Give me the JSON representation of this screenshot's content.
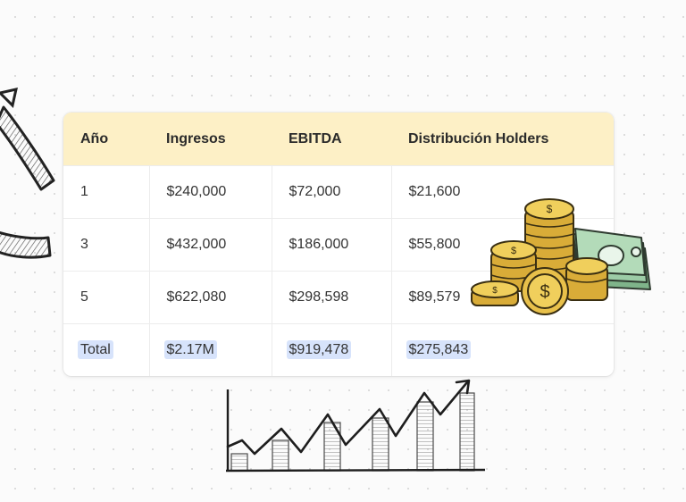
{
  "table": {
    "headers": [
      "Año",
      "Ingresos",
      "EBITDA",
      "Distribución Holders"
    ],
    "rows": [
      {
        "year": "1",
        "ingresos": "$240,000",
        "ebitda": "$72,000",
        "distribucion": "$21,600"
      },
      {
        "year": "3",
        "ingresos": "$432,000",
        "ebitda": "$186,000",
        "distribucion": "$55,800"
      },
      {
        "year": "5",
        "ingresos": "$622,080",
        "ebitda": "$298,598",
        "distribucion": "$89,579"
      }
    ],
    "total": {
      "label": "Total",
      "ingresos": "$2.17M",
      "ebitda": "$919,478",
      "distribucion": "$275,843"
    }
  },
  "colors": {
    "header_bg": "#fdf0c6",
    "highlight": "#d7e3fb",
    "coin": "#e7c24e",
    "bill": "#8fc29a"
  },
  "illustrations": [
    "curved-arrow-icon",
    "growth-chart-sketch-icon",
    "coins-and-cash-icon"
  ]
}
